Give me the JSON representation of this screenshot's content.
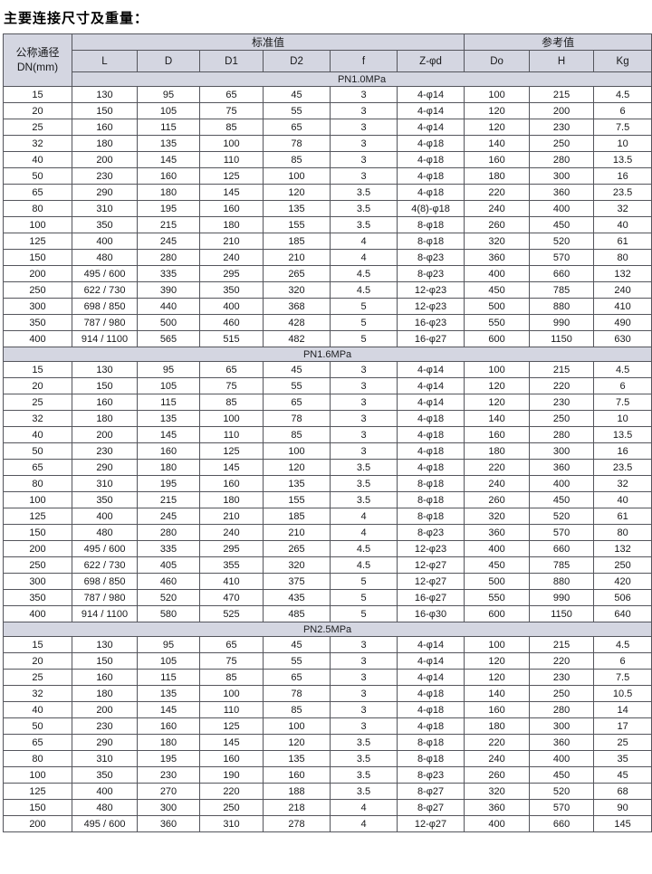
{
  "title": "主要连接尺寸及重量：",
  "header": {
    "dn_line1": "公称通径",
    "dn_line2": "DN(mm)",
    "group_standard": "标准值",
    "group_reference": "参考值",
    "columns": [
      "L",
      "D",
      "D1",
      "D2",
      "f",
      "Z-φd",
      "Do",
      "H",
      "Kg"
    ]
  },
  "sections": [
    {
      "label": "PN1.0MPa",
      "rows": [
        [
          "15",
          "130",
          "95",
          "65",
          "45",
          "3",
          "4-φ14",
          "100",
          "215",
          "4.5"
        ],
        [
          "20",
          "150",
          "105",
          "75",
          "55",
          "3",
          "4-φ14",
          "120",
          "200",
          "6"
        ],
        [
          "25",
          "160",
          "115",
          "85",
          "65",
          "3",
          "4-φ14",
          "120",
          "230",
          "7.5"
        ],
        [
          "32",
          "180",
          "135",
          "100",
          "78",
          "3",
          "4-φ18",
          "140",
          "250",
          "10"
        ],
        [
          "40",
          "200",
          "145",
          "110",
          "85",
          "3",
          "4-φ18",
          "160",
          "280",
          "13.5"
        ],
        [
          "50",
          "230",
          "160",
          "125",
          "100",
          "3",
          "4-φ18",
          "180",
          "300",
          "16"
        ],
        [
          "65",
          "290",
          "180",
          "145",
          "120",
          "3.5",
          "4-φ18",
          "220",
          "360",
          "23.5"
        ],
        [
          "80",
          "310",
          "195",
          "160",
          "135",
          "3.5",
          "4(8)-φ18",
          "240",
          "400",
          "32"
        ],
        [
          "100",
          "350",
          "215",
          "180",
          "155",
          "3.5",
          "8-φ18",
          "260",
          "450",
          "40"
        ],
        [
          "125",
          "400",
          "245",
          "210",
          "185",
          "4",
          "8-φ18",
          "320",
          "520",
          "61"
        ],
        [
          "150",
          "480",
          "280",
          "240",
          "210",
          "4",
          "8-φ23",
          "360",
          "570",
          "80"
        ],
        [
          "200",
          "495 / 600",
          "335",
          "295",
          "265",
          "4.5",
          "8-φ23",
          "400",
          "660",
          "132"
        ],
        [
          "250",
          "622 / 730",
          "390",
          "350",
          "320",
          "4.5",
          "12-φ23",
          "450",
          "785",
          "240"
        ],
        [
          "300",
          "698 / 850",
          "440",
          "400",
          "368",
          "5",
          "12-φ23",
          "500",
          "880",
          "410"
        ],
        [
          "350",
          "787 / 980",
          "500",
          "460",
          "428",
          "5",
          "16-φ23",
          "550",
          "990",
          "490"
        ],
        [
          "400",
          "914 / 1100",
          "565",
          "515",
          "482",
          "5",
          "16-φ27",
          "600",
          "1150",
          "630"
        ]
      ]
    },
    {
      "label": "PN1.6MPa",
      "rows": [
        [
          "15",
          "130",
          "95",
          "65",
          "45",
          "3",
          "4-φ14",
          "100",
          "215",
          "4.5"
        ],
        [
          "20",
          "150",
          "105",
          "75",
          "55",
          "3",
          "4-φ14",
          "120",
          "220",
          "6"
        ],
        [
          "25",
          "160",
          "115",
          "85",
          "65",
          "3",
          "4-φ14",
          "120",
          "230",
          "7.5"
        ],
        [
          "32",
          "180",
          "135",
          "100",
          "78",
          "3",
          "4-φ18",
          "140",
          "250",
          "10"
        ],
        [
          "40",
          "200",
          "145",
          "110",
          "85",
          "3",
          "4-φ18",
          "160",
          "280",
          "13.5"
        ],
        [
          "50",
          "230",
          "160",
          "125",
          "100",
          "3",
          "4-φ18",
          "180",
          "300",
          "16"
        ],
        [
          "65",
          "290",
          "180",
          "145",
          "120",
          "3.5",
          "4-φ18",
          "220",
          "360",
          "23.5"
        ],
        [
          "80",
          "310",
          "195",
          "160",
          "135",
          "3.5",
          "8-φ18",
          "240",
          "400",
          "32"
        ],
        [
          "100",
          "350",
          "215",
          "180",
          "155",
          "3.5",
          "8-φ18",
          "260",
          "450",
          "40"
        ],
        [
          "125",
          "400",
          "245",
          "210",
          "185",
          "4",
          "8-φ18",
          "320",
          "520",
          "61"
        ],
        [
          "150",
          "480",
          "280",
          "240",
          "210",
          "4",
          "8-φ23",
          "360",
          "570",
          "80"
        ],
        [
          "200",
          "495 / 600",
          "335",
          "295",
          "265",
          "4.5",
          "12-φ23",
          "400",
          "660",
          "132"
        ],
        [
          "250",
          "622 / 730",
          "405",
          "355",
          "320",
          "4.5",
          "12-φ27",
          "450",
          "785",
          "250"
        ],
        [
          "300",
          "698 / 850",
          "460",
          "410",
          "375",
          "5",
          "12-φ27",
          "500",
          "880",
          "420"
        ],
        [
          "350",
          "787 / 980",
          "520",
          "470",
          "435",
          "5",
          "16-φ27",
          "550",
          "990",
          "506"
        ],
        [
          "400",
          "914 / 1100",
          "580",
          "525",
          "485",
          "5",
          "16-φ30",
          "600",
          "1150",
          "640"
        ]
      ]
    },
    {
      "label": "PN2.5MPa",
      "rows": [
        [
          "15",
          "130",
          "95",
          "65",
          "45",
          "3",
          "4-φ14",
          "100",
          "215",
          "4.5"
        ],
        [
          "20",
          "150",
          "105",
          "75",
          "55",
          "3",
          "4-φ14",
          "120",
          "220",
          "6"
        ],
        [
          "25",
          "160",
          "115",
          "85",
          "65",
          "3",
          "4-φ14",
          "120",
          "230",
          "7.5"
        ],
        [
          "32",
          "180",
          "135",
          "100",
          "78",
          "3",
          "4-φ18",
          "140",
          "250",
          "10.5"
        ],
        [
          "40",
          "200",
          "145",
          "110",
          "85",
          "3",
          "4-φ18",
          "160",
          "280",
          "14"
        ],
        [
          "50",
          "230",
          "160",
          "125",
          "100",
          "3",
          "4-φ18",
          "180",
          "300",
          "17"
        ],
        [
          "65",
          "290",
          "180",
          "145",
          "120",
          "3.5",
          "8-φ18",
          "220",
          "360",
          "25"
        ],
        [
          "80",
          "310",
          "195",
          "160",
          "135",
          "3.5",
          "8-φ18",
          "240",
          "400",
          "35"
        ],
        [
          "100",
          "350",
          "230",
          "190",
          "160",
          "3.5",
          "8-φ23",
          "260",
          "450",
          "45"
        ],
        [
          "125",
          "400",
          "270",
          "220",
          "188",
          "3.5",
          "8-φ27",
          "320",
          "520",
          "68"
        ],
        [
          "150",
          "480",
          "300",
          "250",
          "218",
          "4",
          "8-φ27",
          "360",
          "570",
          "90"
        ],
        [
          "200",
          "495 / 600",
          "360",
          "310",
          "278",
          "4",
          "12-φ27",
          "400",
          "660",
          "145"
        ]
      ]
    }
  ]
}
